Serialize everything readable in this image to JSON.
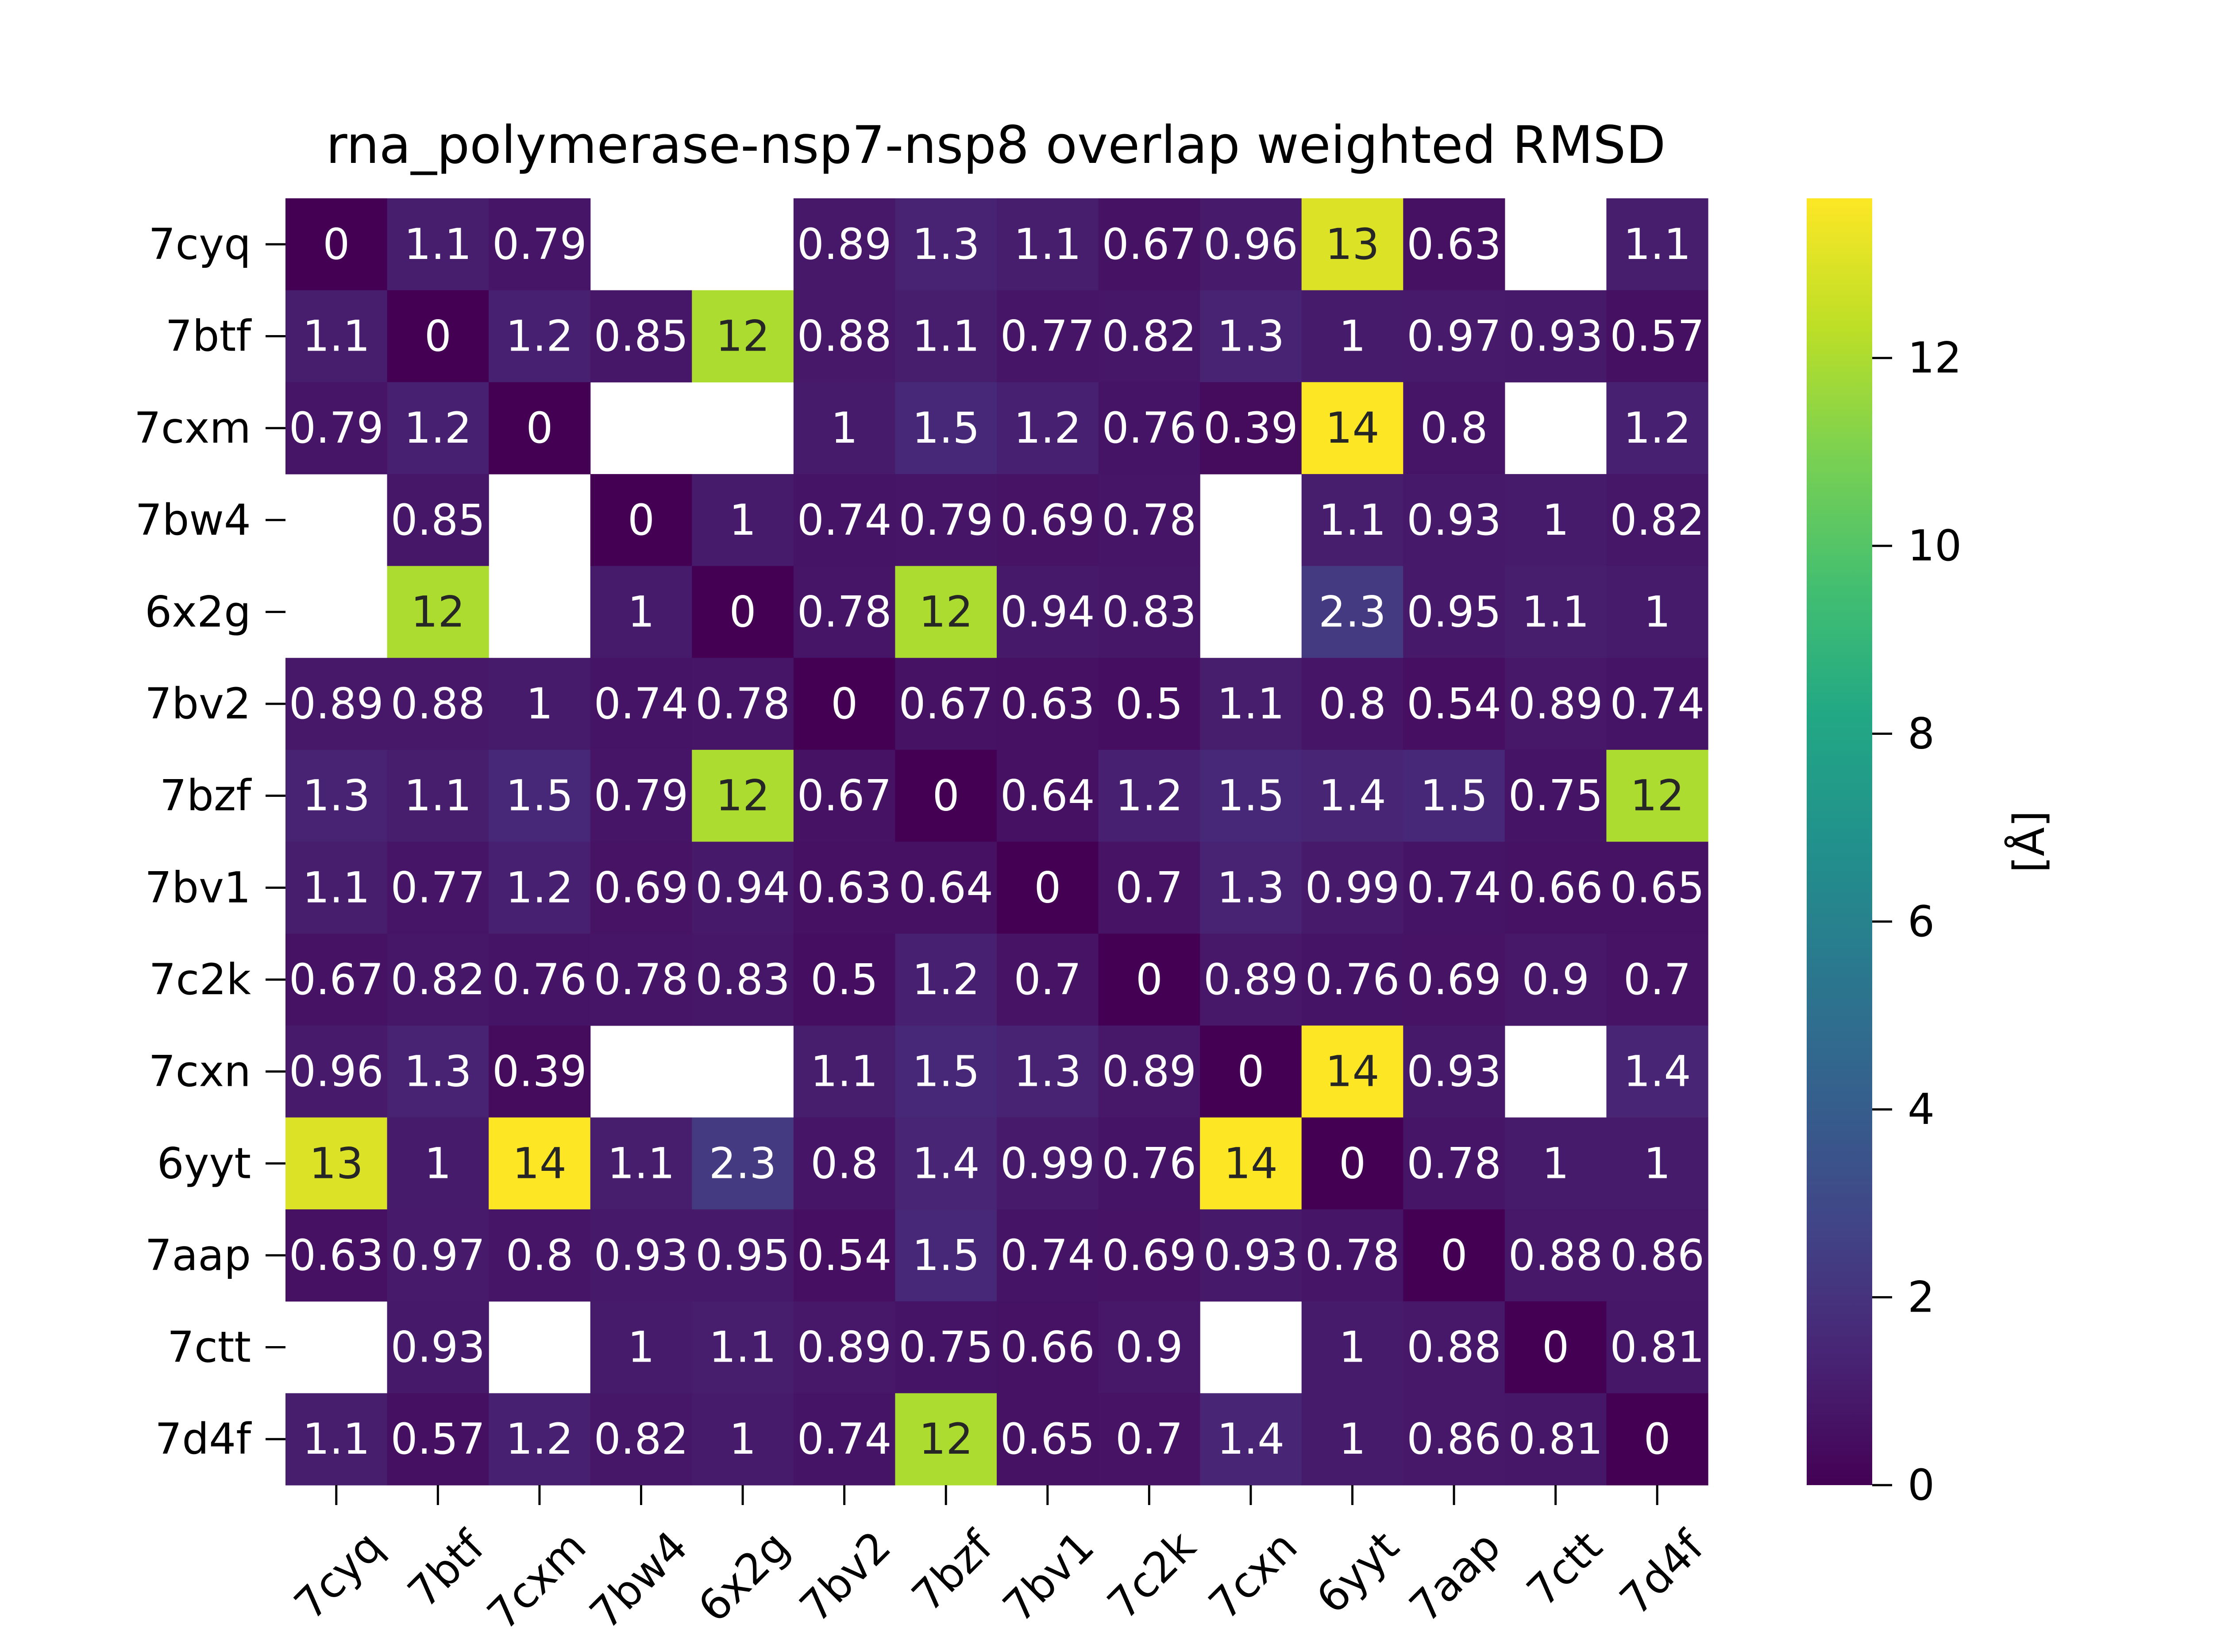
{
  "chart_data": {
    "type": "heatmap",
    "title": "rna_polymerase-nsp7-nsp8 overlap weighted RMSD",
    "xlabel": "",
    "ylabel": "",
    "x_categories": [
      "7cyq",
      "7btf",
      "7cxm",
      "7bw4",
      "6x2g",
      "7bv2",
      "7bzf",
      "7bv1",
      "7c2k",
      "7cxn",
      "6yyt",
      "7aap",
      "7ctt",
      "7d4f"
    ],
    "y_categories": [
      "7cyq",
      "7btf",
      "7cxm",
      "7bw4",
      "6x2g",
      "7bv2",
      "7bzf",
      "7bv1",
      "7c2k",
      "7cxn",
      "6yyt",
      "7aap",
      "7ctt",
      "7d4f"
    ],
    "values": [
      [
        0,
        1.1,
        0.79,
        null,
        null,
        0.89,
        1.3,
        1.1,
        0.67,
        0.96,
        13,
        0.63,
        null,
        1.1
      ],
      [
        1.1,
        0,
        1.2,
        0.85,
        12,
        0.88,
        1.1,
        0.77,
        0.82,
        1.3,
        1,
        0.97,
        0.93,
        0.57
      ],
      [
        0.79,
        1.2,
        0,
        null,
        null,
        1,
        1.5,
        1.2,
        0.76,
        0.39,
        14,
        0.8,
        null,
        1.2
      ],
      [
        null,
        0.85,
        null,
        0,
        1,
        0.74,
        0.79,
        0.69,
        0.78,
        null,
        1.1,
        0.93,
        1,
        0.82
      ],
      [
        null,
        12,
        null,
        1,
        0,
        0.78,
        12,
        0.94,
        0.83,
        null,
        2.3,
        0.95,
        1.1,
        1
      ],
      [
        0.89,
        0.88,
        1,
        0.74,
        0.78,
        0,
        0.67,
        0.63,
        0.5,
        1.1,
        0.8,
        0.54,
        0.89,
        0.74
      ],
      [
        1.3,
        1.1,
        1.5,
        0.79,
        12,
        0.67,
        0,
        0.64,
        1.2,
        1.5,
        1.4,
        1.5,
        0.75,
        12
      ],
      [
        1.1,
        0.77,
        1.2,
        0.69,
        0.94,
        0.63,
        0.64,
        0,
        0.7,
        1.3,
        0.99,
        0.74,
        0.66,
        0.65
      ],
      [
        0.67,
        0.82,
        0.76,
        0.78,
        0.83,
        0.5,
        1.2,
        0.7,
        0,
        0.89,
        0.76,
        0.69,
        0.9,
        0.7
      ],
      [
        0.96,
        1.3,
        0.39,
        null,
        null,
        1.1,
        1.5,
        1.3,
        0.89,
        0,
        14,
        0.93,
        null,
        1.4
      ],
      [
        13,
        1,
        14,
        1.1,
        2.3,
        0.8,
        1.4,
        0.99,
        0.76,
        14,
        0,
        0.78,
        1,
        1
      ],
      [
        0.63,
        0.97,
        0.8,
        0.93,
        0.95,
        0.54,
        1.5,
        0.74,
        0.69,
        0.93,
        0.78,
        0,
        0.88,
        0.86
      ],
      [
        null,
        0.93,
        null,
        1,
        1.1,
        0.89,
        0.75,
        0.66,
        0.9,
        null,
        1,
        0.88,
        0,
        0.81
      ],
      [
        1.1,
        0.57,
        1.2,
        0.82,
        1,
        0.74,
        12,
        0.65,
        0.7,
        1.4,
        1,
        0.86,
        0.81,
        0
      ]
    ],
    "colorbar": {
      "label": "[Å]",
      "range": [
        0,
        13.7
      ],
      "ticks": [
        0,
        2,
        4,
        6,
        8,
        10,
        12
      ],
      "colormap": "viridis"
    },
    "grid": false,
    "legend": "colorbar-right"
  }
}
